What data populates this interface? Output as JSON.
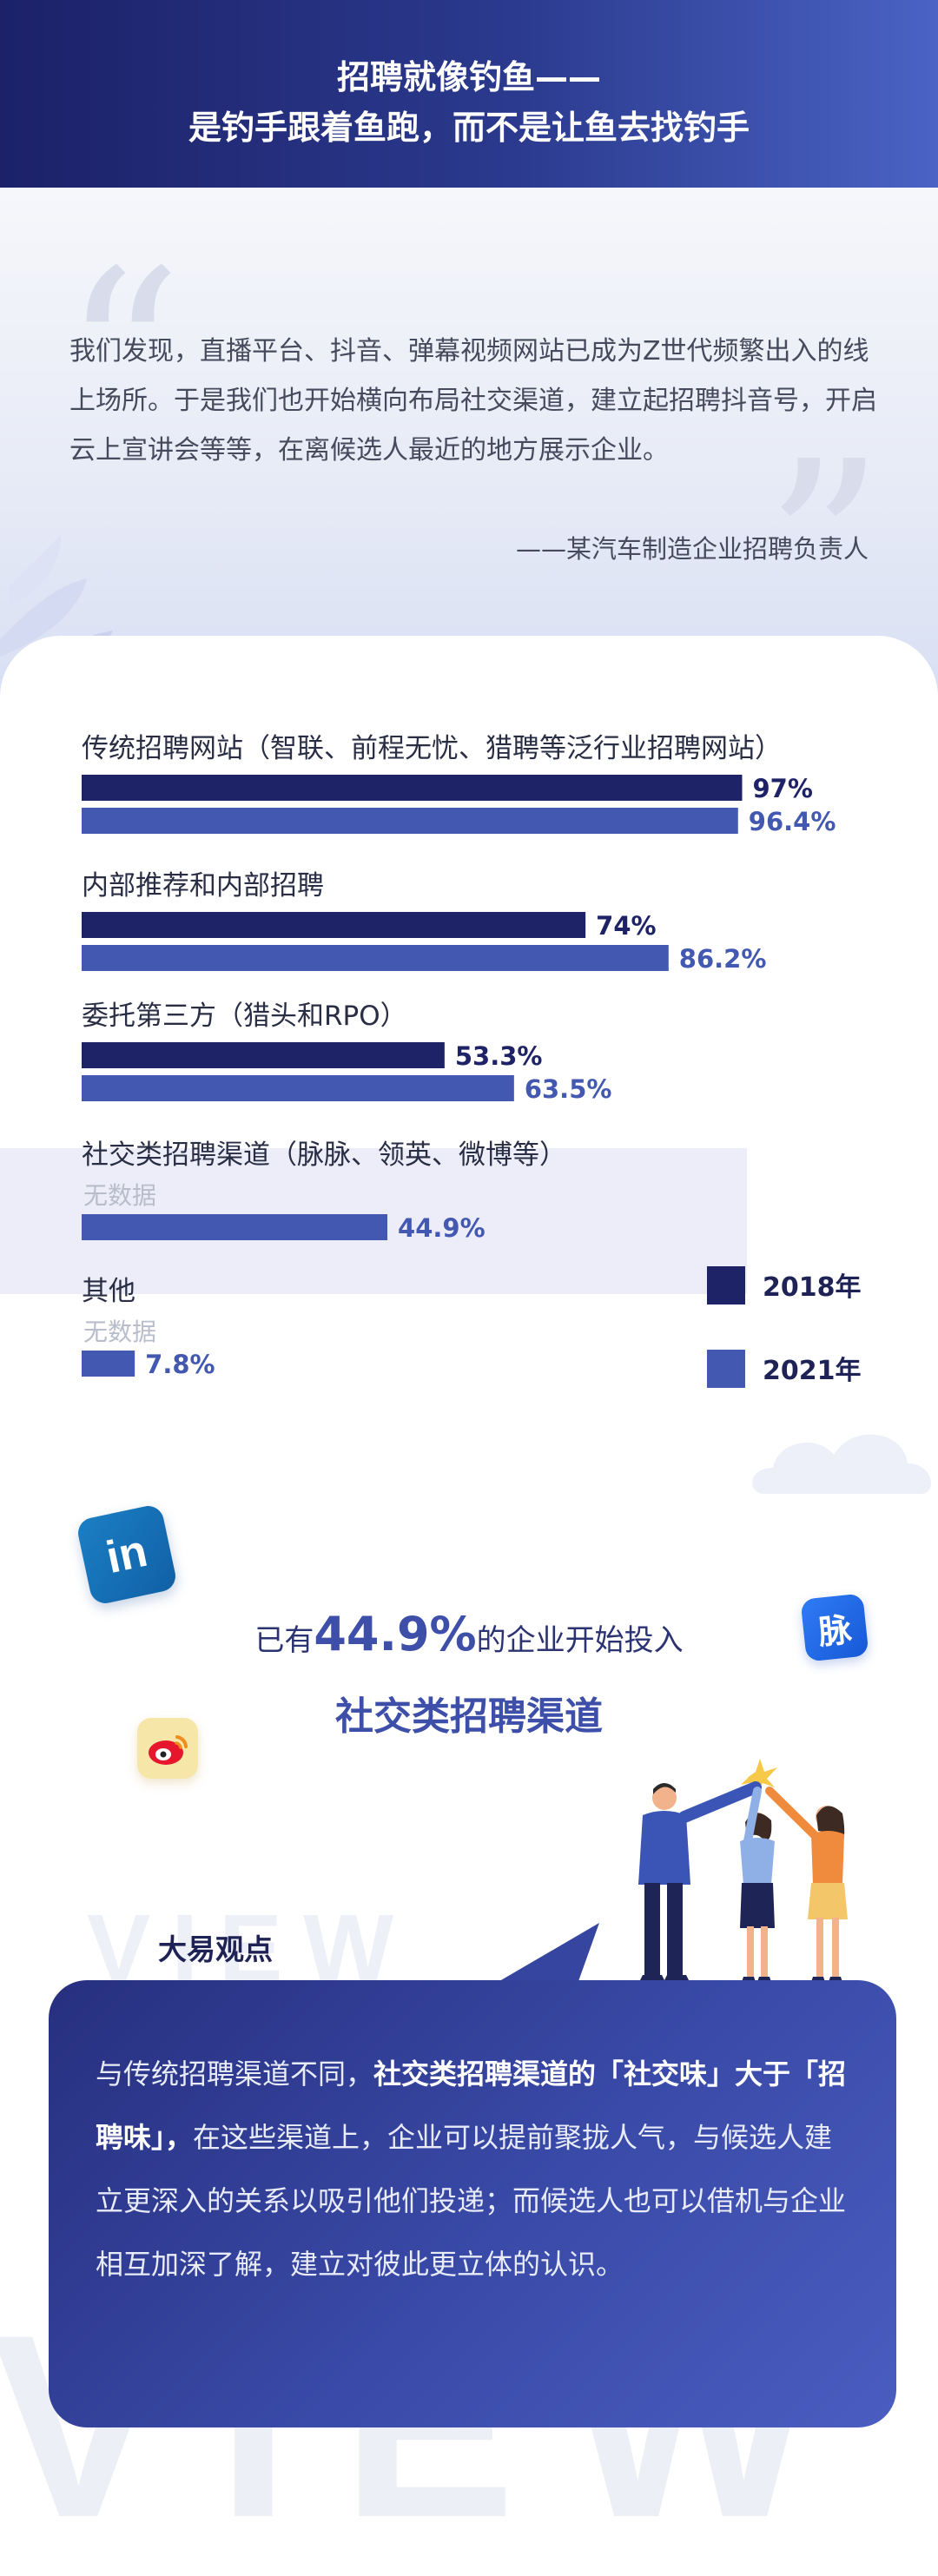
{
  "header": {
    "title_line1": "招聘就像钓鱼——",
    "title_line2": "是钓手跟着鱼跑，而不是让鱼去找钓手"
  },
  "quote": {
    "text": "我们发现，直播平台、抖音、弹幕视频网站已成为Z世代频繁出入的线上场所。于是我们也开始横向布局社交渠道，建立起招聘抖音号，开启云上宣讲会等等，在离候选人最近的地方展示企业。",
    "author": "——某汽车制造企业招聘负责人"
  },
  "chart_data": {
    "type": "bar",
    "orientation": "horizontal",
    "categories": [
      "传统招聘网站（智联、前程无忧、猎聘等泛行业招聘网站）",
      "内部推荐和内部招聘",
      "委托第三方（猎头和RPO）",
      "社交类招聘渠道（脉脉、领英、微博等）",
      "其他"
    ],
    "series": [
      {
        "name": "2018年",
        "values": [
          97,
          74,
          53.3,
          null,
          null
        ],
        "labels": [
          "97%",
          "74%",
          "53.3%",
          "无数据",
          "无数据"
        ],
        "color": "#1e2266"
      },
      {
        "name": "2021年",
        "values": [
          96.4,
          86.2,
          63.5,
          44.9,
          7.8
        ],
        "labels": [
          "96.4%",
          "86.2%",
          "63.5%",
          "44.9%",
          "7.8%"
        ],
        "color": "#4358b0"
      }
    ],
    "xlim": [
      0,
      100
    ],
    "legend": "right",
    "highlighted_category": "社交类招聘渠道（脉脉、领英、微博等）"
  },
  "social": {
    "stat_prefix": "已有",
    "stat_value": "44.9%",
    "stat_suffix": "的企业开始投入",
    "stat_line2": "社交类招聘渠道",
    "linkedin_glyph": "in",
    "maimai_glyph": "脉",
    "icons": [
      "linkedin-icon",
      "maimai-icon",
      "weibo-icon"
    ]
  },
  "view": {
    "bg_word": "VIEW",
    "title": "大易观点",
    "text_part1": "与传统招聘渠道不同，",
    "text_bold": "社交类招聘渠道的「社交味」大于「招聘味」，",
    "text_part2": "在这些渠道上，企业可以提前聚拢人气，与候选人建立更深入的关系以吸引他们投递；而候选人也可以借机与企业相互加深了解，建立对彼此更立体的认识。"
  },
  "colors": {
    "dark_navy": "#1e2266",
    "blue": "#4358b0",
    "accent": "#3d4fa8"
  }
}
